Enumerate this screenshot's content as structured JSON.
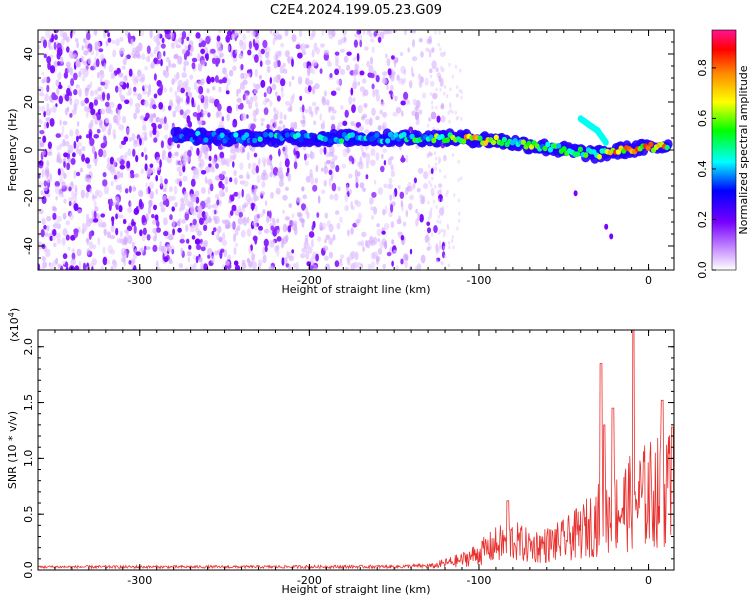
{
  "title": "C2E4.2024.199.05.23.G09",
  "colors": {
    "line": "#e8302e",
    "colormap": [
      "#ffffff",
      "#cc99ff",
      "#7700ff",
      "#0000ff",
      "#00ffff",
      "#00ff00",
      "#ffff00",
      "#ff8800",
      "#ff0000",
      "#ff1493"
    ]
  },
  "chart_data": [
    {
      "type": "heatmap",
      "title": "",
      "xlabel": "Height of straight line (km)",
      "ylabel": "Frequency (Hz)",
      "xlim": [
        -360,
        15
      ],
      "ylim": [
        -50,
        50
      ],
      "xticks": [
        -300,
        -200,
        -100,
        0
      ],
      "yticks": [
        -40,
        -20,
        0,
        20,
        40
      ],
      "colorbar": {
        "label": "Normalized spectral amplitude",
        "range": [
          0,
          0.95
        ],
        "ticks": [
          "0.0",
          "0.2",
          "0.4",
          "0.6",
          "0.8"
        ]
      },
      "ridge": [
        {
          "x": -280,
          "y": 6,
          "amp": 0.35
        },
        {
          "x": -240,
          "y": 5,
          "amp": 0.4
        },
        {
          "x": -200,
          "y": 5,
          "amp": 0.42
        },
        {
          "x": -160,
          "y": 5,
          "amp": 0.45
        },
        {
          "x": -130,
          "y": 5,
          "amp": 0.5
        },
        {
          "x": -110,
          "y": 5,
          "amp": 0.7
        },
        {
          "x": -90,
          "y": 4,
          "amp": 0.6
        },
        {
          "x": -70,
          "y": 2,
          "amp": 0.55
        },
        {
          "x": -50,
          "y": 0,
          "amp": 0.5
        },
        {
          "x": -30,
          "y": -2,
          "amp": 0.55
        },
        {
          "x": -15,
          "y": 0,
          "amp": 0.8
        },
        {
          "x": 0,
          "y": 1,
          "amp": 0.75
        },
        {
          "x": 12,
          "y": 2,
          "amp": 0.7
        }
      ],
      "branch": [
        {
          "x": -40,
          "y": 13
        },
        {
          "x": -30,
          "y": 8
        },
        {
          "x": -25,
          "y": 3
        }
      ]
    },
    {
      "type": "line",
      "title": "",
      "xlabel": "Height of straight line (km)",
      "ylabel": "SNR (10 * v/v)",
      "yscale_note": "(x10",
      "yscale_exp": "4",
      "xlim": [
        -360,
        15
      ],
      "ylim": [
        0,
        2.15
      ],
      "xticks": [
        -300,
        -200,
        -100,
        0
      ],
      "yticks": [
        "0.0",
        "0.5",
        "1.0",
        "1.5",
        "2.0"
      ],
      "envelope": [
        {
          "x": -360,
          "y": 0.04
        },
        {
          "x": -250,
          "y": 0.04
        },
        {
          "x": -150,
          "y": 0.045
        },
        {
          "x": -125,
          "y": 0.06
        },
        {
          "x": -110,
          "y": 0.12
        },
        {
          "x": -100,
          "y": 0.2
        },
        {
          "x": -90,
          "y": 0.3
        },
        {
          "x": -80,
          "y": 0.35
        },
        {
          "x": -70,
          "y": 0.28
        },
        {
          "x": -60,
          "y": 0.3
        },
        {
          "x": -50,
          "y": 0.35
        },
        {
          "x": -40,
          "y": 0.45
        },
        {
          "x": -30,
          "y": 0.6
        },
        {
          "x": -20,
          "y": 0.7
        },
        {
          "x": -10,
          "y": 0.8
        },
        {
          "x": 0,
          "y": 0.9
        },
        {
          "x": 10,
          "y": 0.95
        },
        {
          "x": 15,
          "y": 1.0
        }
      ],
      "peaks": [
        {
          "x": -83,
          "y": 0.62
        },
        {
          "x": -28,
          "y": 1.85
        },
        {
          "x": -26,
          "y": 1.3
        },
        {
          "x": -21,
          "y": 1.45
        },
        {
          "x": -9,
          "y": 2.15
        },
        {
          "x": 8,
          "y": 1.52
        },
        {
          "x": 14,
          "y": 1.28
        }
      ]
    }
  ]
}
